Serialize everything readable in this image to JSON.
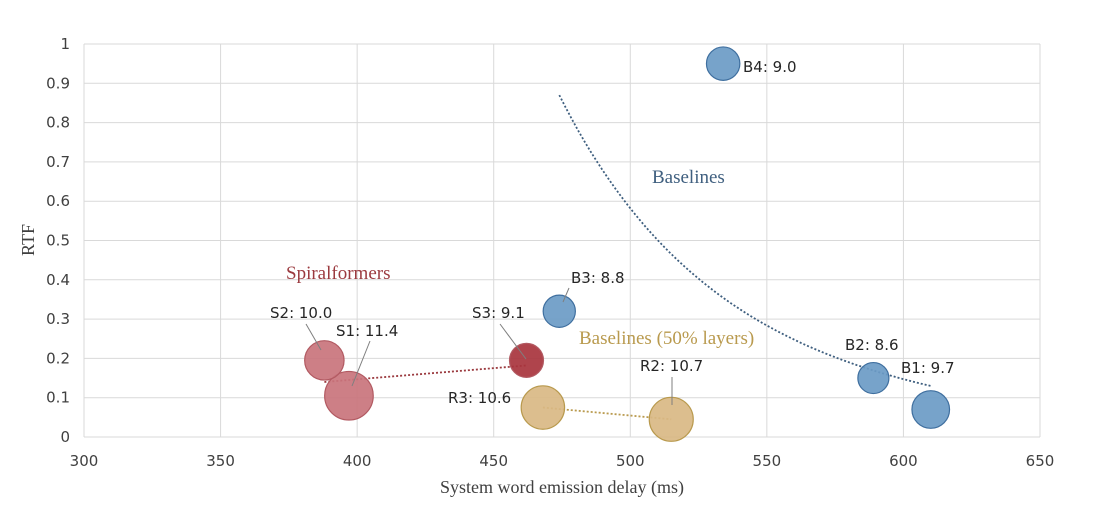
{
  "chart_data": {
    "type": "scatter",
    "title": "",
    "xlabel": "System word emission delay (ms)",
    "ylabel": "RTF",
    "xlim": [
      300,
      650
    ],
    "ylim": [
      0,
      1
    ],
    "grid": true,
    "xticks": [
      300,
      350,
      400,
      450,
      500,
      550,
      600,
      650
    ],
    "yticks": [
      {
        "value": 0,
        "label": "0"
      },
      {
        "value": 0.1,
        "label": "0.1"
      },
      {
        "value": 0.2,
        "label": "0.2"
      },
      {
        "value": 0.3,
        "label": "0.3"
      },
      {
        "value": 0.4,
        "label": "0.4"
      },
      {
        "value": 0.5,
        "label": "0.5"
      },
      {
        "value": 0.6,
        "label": "0.6"
      },
      {
        "value": 0.7,
        "label": "0.7"
      },
      {
        "value": 0.8,
        "label": "0.8"
      },
      {
        "value": 0.9,
        "label": "0.9"
      },
      {
        "value": 1,
        "label": "1"
      }
    ],
    "series": [
      {
        "name": "Spiralformers",
        "color": "#c9747c",
        "points": [
          {
            "id": "s1",
            "label": "S1: 11.4",
            "x": 397,
            "y": 0.105,
            "size": 11.4
          },
          {
            "id": "s2",
            "label": "S2: 10.0",
            "x": 388,
            "y": 0.195,
            "size": 10.0
          },
          {
            "id": "s3",
            "label": "S3: 9.1",
            "x": 462,
            "y": 0.195,
            "size": 9.1
          }
        ]
      },
      {
        "name": "Baselines",
        "color": "#6b9bc6",
        "points": [
          {
            "id": "b1",
            "label": "B1: 9.7",
            "x": 610,
            "y": 0.07,
            "size": 9.7
          },
          {
            "id": "b2",
            "label": "B2: 8.6",
            "x": 589,
            "y": 0.15,
            "size": 8.6
          },
          {
            "id": "b3",
            "label": "B3: 8.8",
            "x": 474,
            "y": 0.32,
            "size": 8.8
          },
          {
            "id": "b4",
            "label": "B4: 9.0",
            "x": 534,
            "y": 0.95,
            "size": 9.0
          }
        ]
      },
      {
        "name": "Baselines (50% layers)",
        "color": "#d9b984",
        "points": [
          {
            "id": "r2",
            "label": "R2: 10.7",
            "x": 515,
            "y": 0.045,
            "size": 10.7
          },
          {
            "id": "r3",
            "label": "R3: 10.6",
            "x": 468,
            "y": 0.075,
            "size": 10.6
          }
        ]
      }
    ],
    "annotations": [
      {
        "id": "spiralformers",
        "text": "Spiralformers",
        "color": "#9b3a3f"
      },
      {
        "id": "baselines",
        "text": "Baselines",
        "color": "#3f5f7f"
      },
      {
        "id": "baselines50",
        "text": "Baselines (50% layers)",
        "color": "#b99a4e"
      }
    ]
  }
}
